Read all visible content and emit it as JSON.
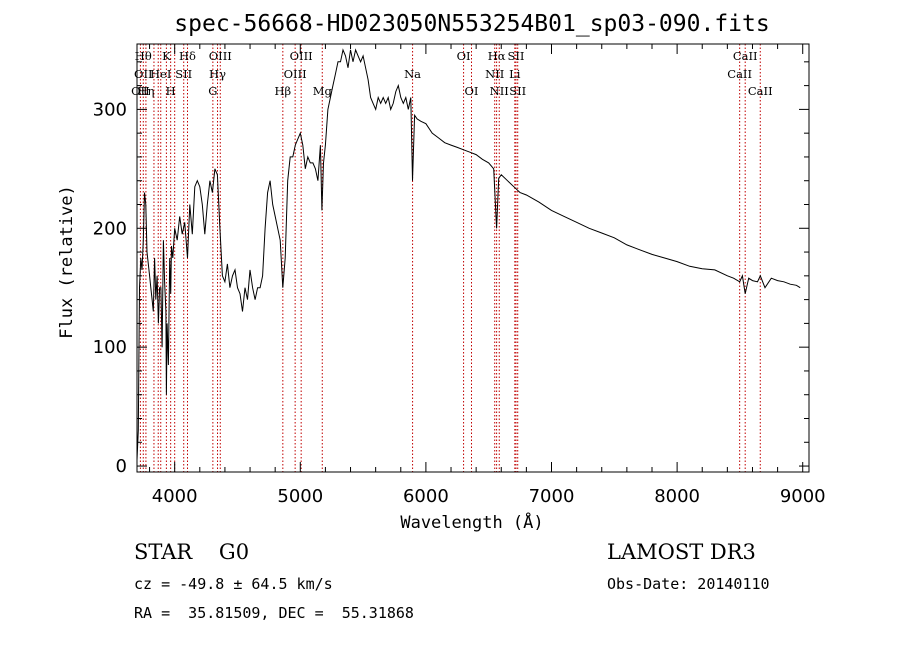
{
  "chart_data": {
    "type": "line",
    "title": "spec-56668-HD023050N553254B01_sp03-090.fits",
    "xlabel": "Wavelength (Å)",
    "ylabel": "Flux (relative)",
    "xlim": [
      3700,
      9050
    ],
    "ylim": [
      -5,
      355
    ],
    "xticks": [
      4000,
      5000,
      6000,
      7000,
      8000,
      9000
    ],
    "yticks": [
      0,
      100,
      200,
      300
    ],
    "grid": false,
    "series": [
      {
        "name": "",
        "color": "#000000",
        "x": [
          3700,
          3710,
          3720,
          3730,
          3740,
          3750,
          3760,
          3770,
          3780,
          3790,
          3800,
          3810,
          3820,
          3830,
          3840,
          3850,
          3860,
          3870,
          3880,
          3890,
          3900,
          3910,
          3920,
          3930,
          3934,
          3940,
          3950,
          3960,
          3968,
          3975,
          3985,
          4000,
          4020,
          4040,
          4060,
          4080,
          4102,
          4120,
          4140,
          4160,
          4180,
          4200,
          4220,
          4240,
          4260,
          4280,
          4300,
          4320,
          4340,
          4360,
          4380,
          4400,
          4420,
          4440,
          4460,
          4480,
          4500,
          4520,
          4540,
          4560,
          4580,
          4600,
          4620,
          4640,
          4660,
          4680,
          4700,
          4720,
          4740,
          4760,
          4780,
          4800,
          4820,
          4840,
          4861,
          4880,
          4900,
          4920,
          4940,
          4960,
          4980,
          5000,
          5020,
          5040,
          5060,
          5080,
          5100,
          5120,
          5140,
          5160,
          5172,
          5185,
          5200,
          5220,
          5240,
          5260,
          5280,
          5300,
          5320,
          5340,
          5360,
          5380,
          5400,
          5420,
          5440,
          5460,
          5480,
          5500,
          5520,
          5540,
          5560,
          5580,
          5600,
          5620,
          5640,
          5660,
          5680,
          5700,
          5720,
          5740,
          5760,
          5780,
          5800,
          5820,
          5840,
          5860,
          5880,
          5893,
          5910,
          5930,
          5960,
          6000,
          6050,
          6100,
          6150,
          6200,
          6250,
          6300,
          6350,
          6400,
          6450,
          6500,
          6540,
          6563,
          6580,
          6600,
          6650,
          6700,
          6750,
          6800,
          6900,
          7000,
          7100,
          7200,
          7300,
          7400,
          7500,
          7600,
          7700,
          7800,
          7900,
          8000,
          8100,
          8200,
          8300,
          8400,
          8450,
          8498,
          8520,
          8542,
          8570,
          8600,
          8640,
          8662,
          8700,
          8750,
          8800,
          8850,
          8900,
          8950,
          8980
        ],
        "values": [
          5,
          30,
          150,
          175,
          165,
          190,
          230,
          220,
          180,
          170,
          160,
          150,
          140,
          130,
          175,
          140,
          160,
          120,
          150,
          150,
          100,
          190,
          155,
          130,
          60,
          120,
          85,
          175,
          145,
          185,
          175,
          200,
          190,
          210,
          195,
          205,
          175,
          220,
          195,
          235,
          240,
          235,
          220,
          195,
          220,
          240,
          230,
          250,
          245,
          200,
          160,
          155,
          170,
          150,
          160,
          165,
          150,
          145,
          130,
          150,
          140,
          165,
          150,
          140,
          150,
          150,
          160,
          200,
          230,
          240,
          220,
          210,
          200,
          190,
          150,
          175,
          240,
          260,
          260,
          270,
          275,
          280,
          270,
          250,
          260,
          255,
          255,
          250,
          240,
          270,
          215,
          255,
          270,
          300,
          310,
          320,
          330,
          340,
          340,
          350,
          345,
          335,
          350,
          340,
          350,
          345,
          340,
          345,
          335,
          325,
          310,
          305,
          300,
          310,
          305,
          310,
          305,
          310,
          300,
          305,
          315,
          320,
          310,
          305,
          310,
          300,
          310,
          240,
          295,
          292,
          290,
          288,
          280,
          276,
          272,
          270,
          268,
          266,
          264,
          262,
          258,
          255,
          250,
          200,
          242,
          245,
          240,
          235,
          230,
          228,
          222,
          215,
          210,
          205,
          200,
          196,
          192,
          186,
          182,
          178,
          175,
          172,
          168,
          166,
          165,
          160,
          158,
          155,
          160,
          145,
          158,
          156,
          155,
          160,
          150,
          158,
          156,
          155,
          153,
          152,
          150
        ]
      }
    ],
    "line_marks": [
      {
        "wave": 3727,
        "labels": [
          "",
          "",
          "OII"
        ]
      },
      {
        "wave": 3750,
        "labels": [
          "Hθ",
          "OII",
          ""
        ]
      },
      {
        "wave": 3771,
        "labels": [
          "",
          "",
          "Hη"
        ]
      },
      {
        "wave": 3835,
        "labels": [
          "",
          "",
          ""
        ]
      },
      {
        "wave": 3869,
        "labels": [
          "",
          "",
          ""
        ]
      },
      {
        "wave": 3889,
        "labels": [
          "",
          "HeI",
          ""
        ]
      },
      {
        "wave": 3934,
        "labels": [
          "K",
          "",
          ""
        ]
      },
      {
        "wave": 3968,
        "labels": [
          "",
          "",
          "H"
        ]
      },
      {
        "wave": 4000,
        "labels": [
          "",
          "",
          ""
        ]
      },
      {
        "wave": 4072,
        "labels": [
          "",
          "SII",
          ""
        ]
      },
      {
        "wave": 4102,
        "labels": [
          "Hδ",
          "",
          ""
        ]
      },
      {
        "wave": 4304,
        "labels": [
          "",
          "",
          "G"
        ]
      },
      {
        "wave": 4341,
        "labels": [
          "",
          "Hγ",
          ""
        ]
      },
      {
        "wave": 4363,
        "labels": [
          "OIII",
          "",
          ""
        ]
      },
      {
        "wave": 4861,
        "labels": [
          "",
          "",
          "Hβ"
        ]
      },
      {
        "wave": 4959,
        "labels": [
          "",
          "OIII",
          ""
        ]
      },
      {
        "wave": 5007,
        "labels": [
          "OIII",
          "",
          ""
        ]
      },
      {
        "wave": 5175,
        "labels": [
          "",
          "",
          "Mg"
        ]
      },
      {
        "wave": 5894,
        "labels": [
          "",
          "Na",
          ""
        ]
      },
      {
        "wave": 6300,
        "labels": [
          "OI",
          "",
          ""
        ]
      },
      {
        "wave": 6363,
        "labels": [
          "",
          "",
          "OI"
        ]
      },
      {
        "wave": 6548,
        "labels": [
          "",
          "NII",
          ""
        ]
      },
      {
        "wave": 6563,
        "labels": [
          "Hα",
          "",
          ""
        ]
      },
      {
        "wave": 6584,
        "labels": [
          "",
          "",
          "NII"
        ]
      },
      {
        "wave": 6708,
        "labels": [
          "",
          "Li",
          ""
        ]
      },
      {
        "wave": 6717,
        "labels": [
          "SII",
          "",
          ""
        ]
      },
      {
        "wave": 6731,
        "labels": [
          "",
          "",
          "SII"
        ]
      },
      {
        "wave": 8498,
        "labels": [
          "",
          "CaII",
          ""
        ]
      },
      {
        "wave": 8542,
        "labels": [
          "CaII",
          "",
          ""
        ]
      },
      {
        "wave": 8662,
        "labels": [
          "",
          "",
          "CaII"
        ]
      }
    ],
    "line_mark_color": "#c00000"
  },
  "info": {
    "class_text": "STAR    G0",
    "cz_text": "cz = -49.8 ± 64.5 km/s",
    "coord_text": "RA =  35.81509, DEC =  55.31868",
    "survey_text": "LAMOST DR3",
    "obsdate_text": "Obs-Date: 20140110"
  }
}
